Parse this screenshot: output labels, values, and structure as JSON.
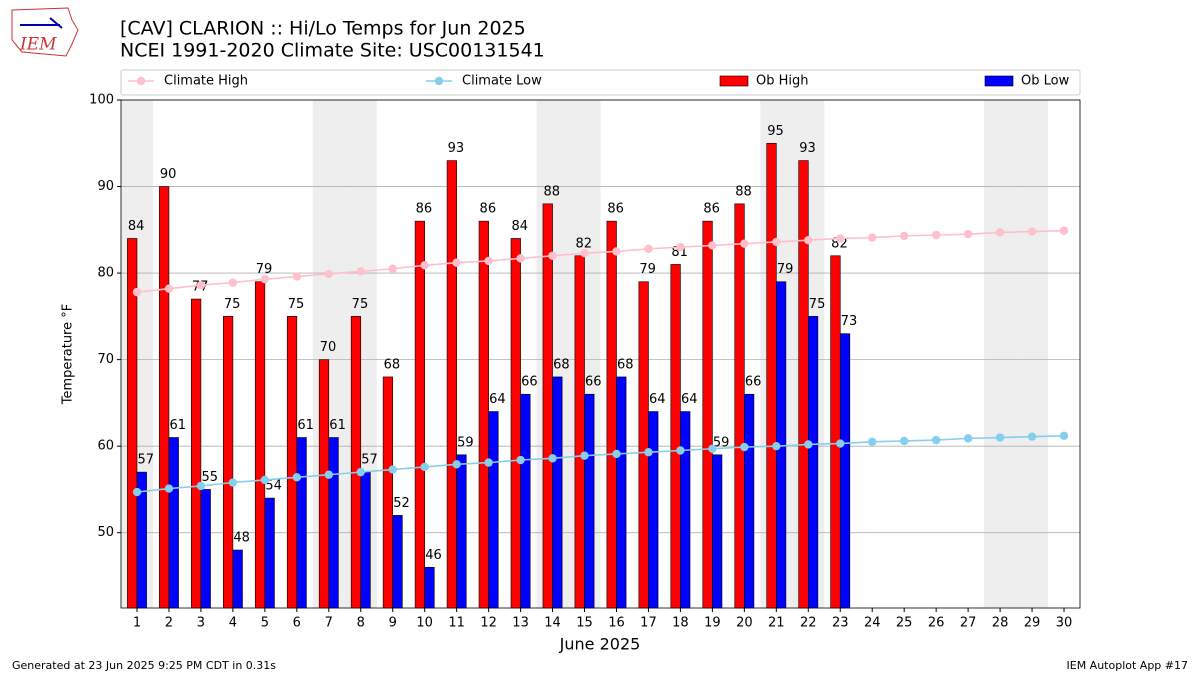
{
  "chart_data": {
    "type": "bar",
    "title": "[CAV] CLARION :: Hi/Lo Temps for Jun 2025",
    "subtitle": "NCEI 1991-2020 Climate Site: USC00131541",
    "x_label": "June 2025",
    "y_label": "Temperature °F",
    "x": [
      1,
      2,
      3,
      4,
      5,
      6,
      7,
      8,
      9,
      10,
      11,
      12,
      13,
      14,
      15,
      16,
      17,
      18,
      19,
      20,
      21,
      22,
      23,
      24,
      25,
      26,
      27,
      28,
      29,
      30
    ],
    "xlim": [
      0.5,
      30.5
    ],
    "ylim": [
      41.3,
      100
    ],
    "yticks": [
      50,
      60,
      70,
      80,
      90,
      100
    ],
    "grid": true,
    "shaded_days": [
      1,
      7,
      8,
      14,
      15,
      21,
      22,
      28,
      29
    ],
    "series": [
      {
        "name": "Climate High",
        "kind": "line",
        "color": "#ffc0cb",
        "values": [
          77.8,
          78.2,
          78.6,
          78.9,
          79.3,
          79.6,
          79.9,
          80.2,
          80.5,
          80.9,
          81.2,
          81.4,
          81.7,
          82.0,
          82.3,
          82.5,
          82.8,
          83.0,
          83.2,
          83.4,
          83.6,
          83.8,
          84.0,
          84.1,
          84.3,
          84.4,
          84.5,
          84.7,
          84.8,
          84.9
        ]
      },
      {
        "name": "Climate Low",
        "kind": "line",
        "color": "#87ceeb",
        "values": [
          54.7,
          55.1,
          55.4,
          55.8,
          56.1,
          56.4,
          56.7,
          57.0,
          57.3,
          57.6,
          57.9,
          58.1,
          58.4,
          58.6,
          58.9,
          59.1,
          59.3,
          59.5,
          59.7,
          59.9,
          60.0,
          60.2,
          60.3,
          60.5,
          60.6,
          60.7,
          60.9,
          61.0,
          61.1,
          61.2
        ]
      },
      {
        "name": "Ob High",
        "kind": "bar",
        "color": "#ff0000",
        "values": [
          84,
          90,
          77,
          75,
          79,
          75,
          70,
          75,
          68,
          86,
          93,
          86,
          84,
          88,
          82,
          86,
          79,
          81,
          86,
          88,
          95,
          93,
          82,
          null,
          null,
          null,
          null,
          null,
          null,
          null
        ]
      },
      {
        "name": "Ob Low",
        "kind": "bar",
        "color": "#0000ff",
        "values": [
          57,
          61,
          55,
          48,
          54,
          61,
          61,
          57,
          52,
          46,
          59,
          64,
          66,
          68,
          66,
          68,
          64,
          64,
          59,
          66,
          79,
          75,
          73,
          null,
          null,
          null,
          null,
          null,
          null,
          null
        ]
      }
    ],
    "footer_left": "Generated at 23 Jun 2025 9:25 PM CDT in 0.31s",
    "footer_right": "IEM Autoplot App #17",
    "logo": "IEM"
  }
}
